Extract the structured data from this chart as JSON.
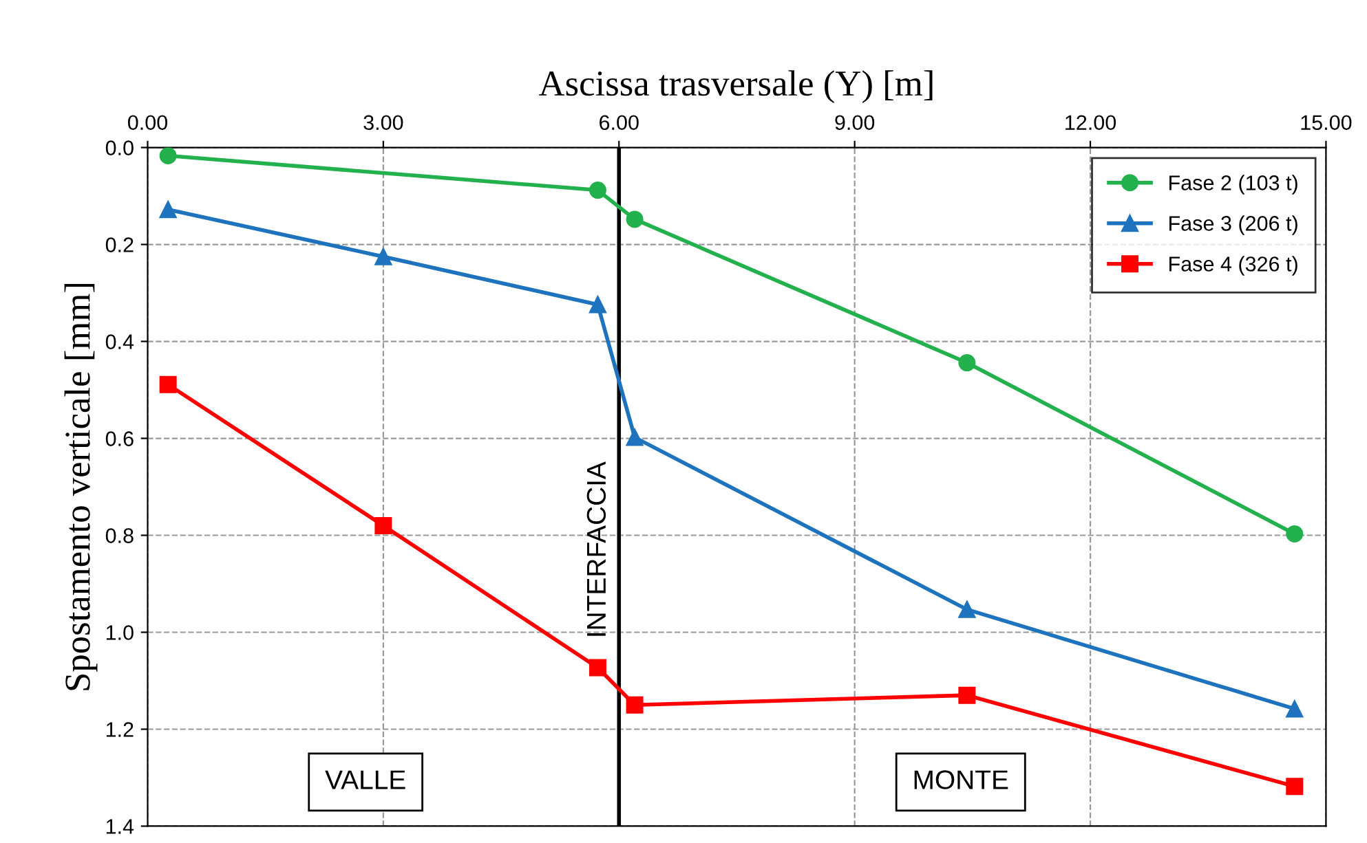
{
  "chart_data": {
    "type": "line",
    "xlabel": "Ascissa trasversale (Y) [m]",
    "ylabel": "Spostamento verticale [mm]",
    "xlim": [
      0,
      15
    ],
    "xticks": [
      {
        "value": 0,
        "label": "0.00"
      },
      {
        "value": 3,
        "label": "3.00"
      },
      {
        "value": 6,
        "label": "6.00"
      },
      {
        "value": 9,
        "label": "9.00"
      },
      {
        "value": 12,
        "label": "12.00"
      },
      {
        "value": 15,
        "label": "15.00"
      }
    ],
    "ylim": [
      1.4,
      0
    ],
    "yticks": [
      {
        "value": 0,
        "label": "0.0"
      },
      {
        "value": 0.2,
        "label": "0.2"
      },
      {
        "value": 0.4,
        "label": "0.4"
      },
      {
        "value": 0.6,
        "label": "0.6"
      },
      {
        "value": 0.8,
        "label": "0.8"
      },
      {
        "value": 1.0,
        "label": "1.0"
      },
      {
        "value": 1.2,
        "label": "1.2"
      },
      {
        "value": 1.4,
        "label": "1.4"
      }
    ],
    "x": [
      0.26,
      3.0,
      5.73,
      6.2,
      10.43,
      14.6
    ],
    "series": [
      {
        "name": "Fase 2 (103 t)",
        "color": "#22b14c",
        "marker": "circle",
        "values": [
          0.017,
          null,
          0.088,
          0.148,
          0.444,
          0.797
        ]
      },
      {
        "name": "Fase 3 (206 t)",
        "color": "#1e73be",
        "marker": "triangle",
        "values": [
          0.128,
          0.225,
          0.324,
          0.598,
          0.953,
          1.158
        ]
      },
      {
        "name": "Fase 4 (326 t)",
        "color": "#ff0000",
        "marker": "square",
        "values": [
          0.489,
          0.78,
          1.073,
          1.15,
          1.13,
          1.318
        ]
      }
    ],
    "ref_lines": [
      {
        "axis": "x",
        "value": 6,
        "label": "INTERFACCIA",
        "color": "#000000"
      }
    ],
    "annotations": [
      "VALLE",
      "MONTE"
    ],
    "grid": true,
    "legend": "top right",
    "line_style": "solid"
  }
}
